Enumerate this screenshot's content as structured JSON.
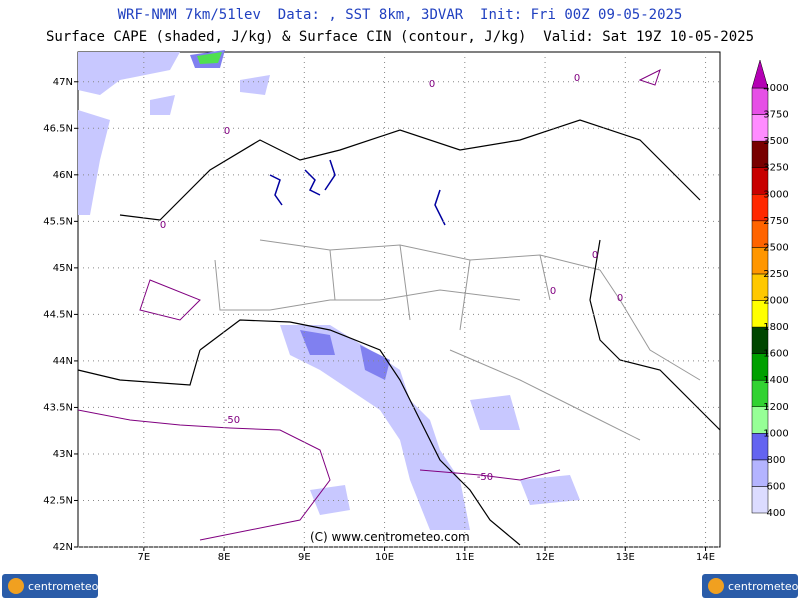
{
  "header": {
    "title": "WRF-NMM 7km/51lev  Data: , SST 8km, 3DVAR  Init: Fri 00Z 09-05-2025",
    "subtitle": "Surface CAPE (shaded, J/kg) & Surface CIN (contour, J/kg)  Valid: Sat 19Z 10-05-2025"
  },
  "map": {
    "xlim": [
      6.18,
      14.18
    ],
    "ylim": [
      42,
      47.32
    ],
    "xticks": [
      {
        "value": 7,
        "label": "7E"
      },
      {
        "value": 8,
        "label": "8E"
      },
      {
        "value": 9,
        "label": "9E"
      },
      {
        "value": 10,
        "label": "10E"
      },
      {
        "value": 11,
        "label": "11E"
      },
      {
        "value": 12,
        "label": "12E"
      },
      {
        "value": 13,
        "label": "13E"
      },
      {
        "value": 14,
        "label": "14E"
      }
    ],
    "yticks": [
      {
        "value": 42,
        "label": "42N"
      },
      {
        "value": 42.5,
        "label": "42.5N"
      },
      {
        "value": 43,
        "label": "43N"
      },
      {
        "value": 43.5,
        "label": "43.5N"
      },
      {
        "value": 44,
        "label": "44N"
      },
      {
        "value": 44.5,
        "label": "44.5N"
      },
      {
        "value": 45,
        "label": "45N"
      },
      {
        "value": 45.5,
        "label": "45.5N"
      },
      {
        "value": 46,
        "label": "46N"
      },
      {
        "value": 46.5,
        "label": "46.5N"
      },
      {
        "value": 47,
        "label": "47N"
      }
    ],
    "contour_labels": [
      "-50",
      "-50",
      "0",
      "0",
      "0",
      "0",
      "0",
      "0",
      "0"
    ],
    "copyright": "(C) www.centrometeo.com"
  },
  "colorbar": {
    "levels": [
      400,
      600,
      800,
      1000,
      1200,
      1400,
      1600,
      1800,
      2000,
      2250,
      2500,
      2750,
      3000,
      3250,
      3500,
      3750,
      4000
    ],
    "colors": [
      "#dcdcff",
      "#b4b4ff",
      "#6464f0",
      "#96ff96",
      "#32d232",
      "#00a000",
      "#004600",
      "#ffff00",
      "#ffc800",
      "#ff9600",
      "#ff6400",
      "#ff2800",
      "#c80000",
      "#780000",
      "#ff8cff",
      "#e650e6",
      "#b400b4",
      "#780078"
    ]
  },
  "logos": {
    "left": "centrometeo",
    "right": "centrometeo"
  }
}
